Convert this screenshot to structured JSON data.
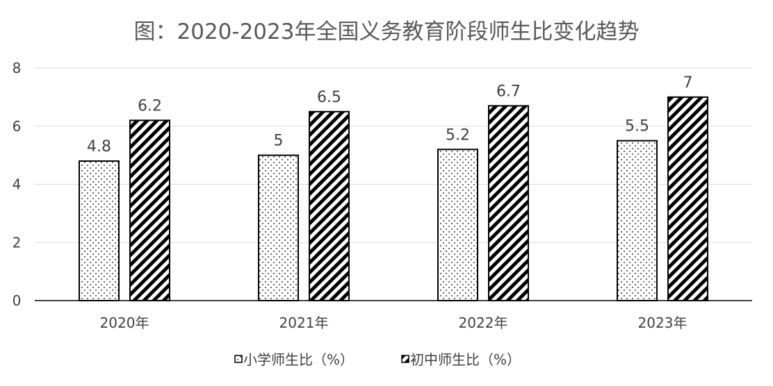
{
  "chart_data": {
    "type": "bar",
    "title": "图：2020-2023年全国义务教育阶段师生比变化趋势",
    "categories": [
      "2020年",
      "2021年",
      "2022年",
      "2023年"
    ],
    "series": [
      {
        "name": "小学师生比（%）",
        "values": [
          4.8,
          5,
          5.2,
          5.5
        ],
        "pattern": "dots"
      },
      {
        "name": "初中师生比（%）",
        "values": [
          6.2,
          6.5,
          6.7,
          7
        ],
        "pattern": "diagonal-stripes"
      }
    ],
    "data_labels": [
      [
        "4.8",
        "5",
        "5.2",
        "5.5"
      ],
      [
        "6.2",
        "6.5",
        "6.7",
        "7"
      ]
    ],
    "yticks": [
      "0",
      "2",
      "4",
      "6",
      "8"
    ],
    "ylim": [
      0,
      8
    ],
    "grid": true,
    "legend_position": "bottom",
    "colors": {
      "bar_stroke": "#000000",
      "gridline": "#d9d9d9",
      "axis": "#000000",
      "text": "#404040",
      "title": "#595959"
    }
  }
}
